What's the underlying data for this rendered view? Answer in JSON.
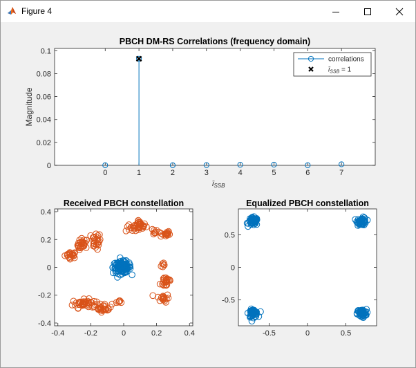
{
  "window": {
    "title": "Figure 4",
    "icon": "matlab-icon",
    "controls": [
      "minimize-icon",
      "maximize-icon",
      "close-icon"
    ]
  },
  "chart_data": [
    {
      "type": "stem",
      "title": "PBCH DM-RS Correlations (frequency domain)",
      "xlabel": "î_SSB",
      "ylabel": "Magnitude",
      "xlim": [
        -1.5,
        8
      ],
      "ylim": [
        0,
        0.102
      ],
      "xticks": [
        0,
        1,
        2,
        3,
        4,
        5,
        6,
        7
      ],
      "yticks": [
        0,
        0.02,
        0.04,
        0.06,
        0.08,
        0.1
      ],
      "ytick_labels": [
        "0",
        "0.02",
        "0.04",
        "0.06",
        "0.08",
        "0.1"
      ],
      "x": [
        0,
        1,
        2,
        3,
        4,
        5,
        6,
        7
      ],
      "series": [
        {
          "name": "correlations",
          "color": "#0072bd",
          "values": [
            0.0001,
            0.093,
            0.0001,
            0.0002,
            0.0005,
            0.0006,
            0.0001,
            0.0009
          ]
        }
      ],
      "markers": [
        {
          "name": "î_SSB = 1",
          "x": 1,
          "y": 0.093,
          "symbol": "x",
          "color": "#000000"
        }
      ],
      "legend": {
        "position": "top-right",
        "entries": [
          "correlations",
          "î_SSB = 1"
        ]
      }
    },
    {
      "type": "scatter",
      "title": "Received PBCH constellation",
      "xlim": [
        -0.42,
        0.42
      ],
      "ylim": [
        -0.42,
        0.42
      ],
      "xticks": [
        -0.4,
        -0.2,
        0,
        0.2,
        0.4
      ],
      "yticks": [
        -0.4,
        -0.2,
        0,
        0.2,
        0.4
      ],
      "xtick_labels": [
        "-0.4",
        "-0.2",
        "0",
        "0.2",
        "0.4"
      ],
      "ytick_labels": [
        "-0.4",
        "-0.2",
        "0",
        "0.2",
        "0.4"
      ],
      "series": [
        {
          "color": "#d95319",
          "clusters": [
            {
              "center": [
                -0.32,
                0.09
              ],
              "spread": [
                0.03,
                0.02
              ],
              "count": 22
            },
            {
              "center": [
                -0.25,
                0.16
              ],
              "spread": [
                0.025,
                0.04
              ],
              "count": 26
            },
            {
              "center": [
                -0.17,
                0.19
              ],
              "spread": [
                0.025,
                0.05
              ],
              "count": 24
            },
            {
              "center": [
                0.1,
                0.3
              ],
              "spread": [
                0.03,
                0.025
              ],
              "count": 26
            },
            {
              "center": [
                0.06,
                0.28
              ],
              "spread": [
                0.04,
                0.02
              ],
              "count": 14
            },
            {
              "center": [
                0.25,
                0.24
              ],
              "spread": [
                0.025,
                0.02
              ],
              "count": 18
            },
            {
              "center": [
                0.18,
                0.26
              ],
              "spread": [
                0.025,
                0.02
              ],
              "count": 8
            },
            {
              "center": [
                0.26,
                -0.1
              ],
              "spread": [
                0.03,
                0.04
              ],
              "count": 22
            },
            {
              "center": [
                0.24,
                -0.22
              ],
              "spread": [
                0.03,
                0.025
              ],
              "count": 18
            },
            {
              "center": [
                0.24,
                0.02
              ],
              "spread": [
                0.015,
                0.02
              ],
              "count": 6
            },
            {
              "center": [
                -0.24,
                -0.26
              ],
              "spread": [
                0.06,
                0.025
              ],
              "count": 46
            },
            {
              "center": [
                -0.12,
                -0.29
              ],
              "spread": [
                0.04,
                0.025
              ],
              "count": 24
            },
            {
              "center": [
                -0.02,
                -0.25
              ],
              "spread": [
                0.02,
                0.01
              ],
              "count": 6
            }
          ]
        },
        {
          "color": "#0072bd",
          "clusters": [
            {
              "center": [
                -0.01,
                0.0
              ],
              "spread": [
                0.045,
                0.035
              ],
              "count": 130
            }
          ]
        }
      ]
    },
    {
      "type": "scatter",
      "title": "Equalized PBCH constellation",
      "xlim": [
        -0.9,
        0.9
      ],
      "ylim": [
        -0.9,
        0.9
      ],
      "xticks": [
        -0.5,
        0,
        0.5
      ],
      "yticks": [
        -0.5,
        0,
        0.5
      ],
      "xtick_labels": [
        "-0.5",
        "0",
        "0.5"
      ],
      "ytick_labels": [
        "-0.5",
        "0",
        "0.5"
      ],
      "series": [
        {
          "color": "#0072bd",
          "clusters": [
            {
              "center": [
                -0.707,
                0.707
              ],
              "spread": [
                0.05,
                0.05
              ],
              "count": 55
            },
            {
              "center": [
                0.707,
                0.707
              ],
              "spread": [
                0.05,
                0.05
              ],
              "count": 55
            },
            {
              "center": [
                -0.707,
                -0.707
              ],
              "spread": [
                0.05,
                0.05
              ],
              "count": 55
            },
            {
              "center": [
                0.707,
                -0.707
              ],
              "spread": [
                0.05,
                0.05
              ],
              "count": 55
            }
          ]
        }
      ]
    }
  ]
}
